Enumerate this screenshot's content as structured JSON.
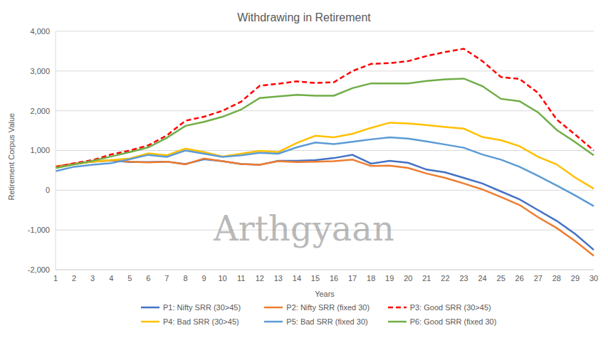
{
  "chart_data": {
    "type": "line",
    "title": "Withdrawing in Retirement",
    "x_label": "Years",
    "y_label": "Retirement Corpus Value",
    "annotations": [
      "Arthgyaan"
    ],
    "categories": [
      1,
      2,
      3,
      4,
      5,
      6,
      7,
      8,
      9,
      10,
      11,
      12,
      13,
      14,
      15,
      16,
      17,
      18,
      19,
      20,
      21,
      22,
      23,
      24,
      25,
      26,
      27,
      28,
      29,
      30
    ],
    "ylim": [
      -2000,
      4000
    ],
    "yticks": [
      {
        "value": -2000,
        "label": "-2,000"
      },
      {
        "value": -1000,
        "label": "-1,000"
      },
      0,
      {
        "value": 1000,
        "label": "1,000"
      },
      {
        "value": 2000,
        "label": "2,000"
      },
      {
        "value": 3000,
        "label": "3,000"
      },
      {
        "value": 4000,
        "label": "4,000"
      }
    ],
    "grid": true,
    "legend": "bottom",
    "series": [
      {
        "name": "P1: Nifty SRR (30>45)",
        "color": "#4472c4",
        "line_style": "solid",
        "values": [
          590,
          660,
          720,
          750,
          710,
          710,
          720,
          660,
          780,
          730,
          660,
          640,
          740,
          740,
          760,
          810,
          890,
          670,
          740,
          690,
          520,
          450,
          310,
          170,
          -30,
          -230,
          -500,
          -770,
          -1100,
          -1500
        ]
      },
      {
        "name": "P2: Nifty SRR (fixed 30)",
        "color": "#ed7d31",
        "line_style": "solid",
        "values": [
          600,
          670,
          720,
          760,
          720,
          700,
          720,
          650,
          800,
          730,
          660,
          640,
          730,
          710,
          720,
          730,
          770,
          610,
          620,
          560,
          420,
          310,
          170,
          20,
          -170,
          -370,
          -680,
          -950,
          -1280,
          -1650
        ]
      },
      {
        "name": "P3: Good SRR (30>45)",
        "color": "#ff0000",
        "line_style": "dashed",
        "values": [
          580,
          680,
          760,
          900,
          1000,
          1130,
          1380,
          1750,
          1850,
          2000,
          2230,
          2630,
          2680,
          2740,
          2700,
          2720,
          3000,
          3180,
          3200,
          3250,
          3380,
          3480,
          3560,
          3250,
          2850,
          2800,
          2450,
          1780,
          1400,
          1000
        ]
      },
      {
        "name": "P4: Bad SRR (30>45)",
        "color": "#ffc000",
        "line_style": "solid",
        "values": [
          560,
          650,
          720,
          760,
          800,
          930,
          880,
          1050,
          960,
          850,
          920,
          990,
          960,
          1190,
          1370,
          1330,
          1420,
          1570,
          1700,
          1680,
          1640,
          1590,
          1550,
          1340,
          1260,
          1110,
          840,
          650,
          320,
          40
        ]
      },
      {
        "name": "P5: Bad SRR (fixed 30)",
        "color": "#5b9bd5",
        "line_style": "solid",
        "values": [
          480,
          590,
          640,
          680,
          780,
          890,
          840,
          1000,
          920,
          840,
          880,
          940,
          920,
          1080,
          1200,
          1160,
          1220,
          1280,
          1330,
          1300,
          1230,
          1150,
          1070,
          900,
          770,
          590,
          360,
          120,
          -130,
          -400
        ]
      },
      {
        "name": "P6: Good SRR (fixed 30)",
        "color": "#70ad47",
        "line_style": "solid",
        "values": [
          560,
          650,
          740,
          850,
          960,
          1080,
          1320,
          1620,
          1720,
          1850,
          2030,
          2320,
          2360,
          2400,
          2380,
          2380,
          2570,
          2690,
          2690,
          2690,
          2750,
          2790,
          2810,
          2620,
          2300,
          2240,
          1960,
          1520,
          1210,
          880
        ]
      }
    ]
  }
}
